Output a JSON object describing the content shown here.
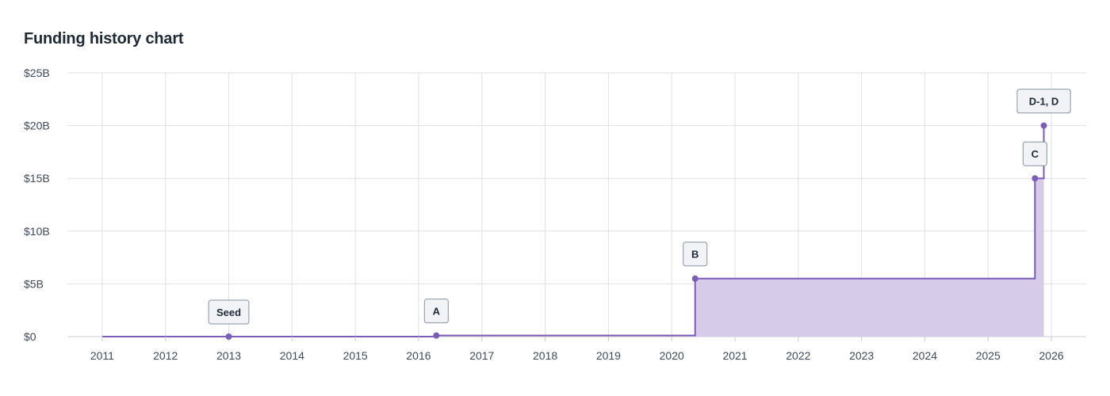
{
  "page": {
    "title": "Funding history chart"
  },
  "chart_data": {
    "type": "area",
    "title": "Funding history chart",
    "step": true,
    "x_type": "year",
    "xlim": [
      2010.45,
      2026.55
    ],
    "ylim": [
      0,
      25
    ],
    "x_ticks": [
      2011,
      2012,
      2013,
      2014,
      2015,
      2016,
      2017,
      2018,
      2019,
      2020,
      2021,
      2022,
      2023,
      2024,
      2025,
      2026
    ],
    "x_tick_labels": [
      "2011",
      "2012",
      "2013",
      "2014",
      "2015",
      "2016",
      "2017",
      "2018",
      "2019",
      "2020",
      "2021",
      "2022",
      "2023",
      "2024",
      "2025",
      "2026"
    ],
    "y_ticks": [
      0,
      5,
      10,
      15,
      20,
      25
    ],
    "y_tick_labels": [
      "$0",
      "$5B",
      "$10B",
      "$15B",
      "$20B",
      "$25B"
    ],
    "y_unit": "$B",
    "grid": true,
    "start_x": 2011,
    "series": [
      {
        "points": [
          {
            "x": 2013.0,
            "y": 0.0,
            "label": "Seed"
          },
          {
            "x": 2016.28,
            "y": 0.1,
            "label": "A"
          },
          {
            "x": 2020.37,
            "y": 5.5,
            "label": "B"
          },
          {
            "x": 2025.74,
            "y": 15.0,
            "label": "C"
          },
          {
            "x": 2025.88,
            "y": 20.0,
            "label": "D-1, D"
          }
        ]
      }
    ],
    "colors": {
      "line": "#7b5cb8",
      "fill": "#d6cbe8",
      "grid": "#dfe1e6",
      "label_box": "#f1f3f6",
      "label_border": "#8a94a3"
    }
  }
}
